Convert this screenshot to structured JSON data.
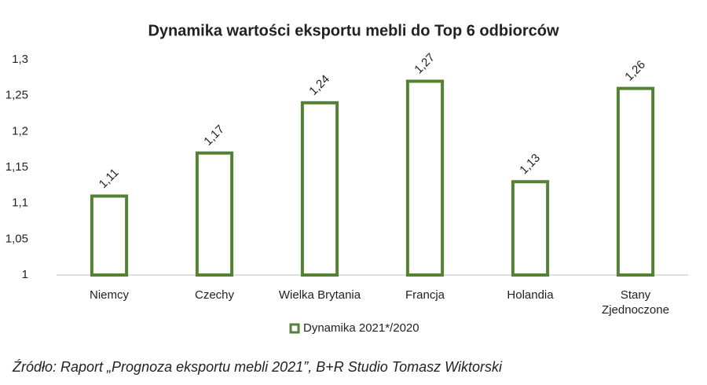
{
  "chart_data": {
    "type": "bar",
    "title": "Dynamika wartości eksportu mebli do Top 6 odbiorców",
    "categories": [
      "Niemcy",
      "Czechy",
      "Wielka Brytania",
      "Francja",
      "Holandia",
      "Stany Zjednoczone"
    ],
    "series": [
      {
        "name": "Dynamika 2021*/2020",
        "color": "#548235",
        "values": [
          1.11,
          1.17,
          1.24,
          1.27,
          1.13,
          1.26
        ],
        "value_labels": [
          "1,11",
          "1,17",
          "1,24",
          "1,27",
          "1,13",
          "1,26"
        ]
      }
    ],
    "ylim": [
      1,
      1.3
    ],
    "yticks": [
      {
        "value": 1,
        "label": "1"
      },
      {
        "value": 1.05,
        "label": "1,05"
      },
      {
        "value": 1.1,
        "label": "1,1"
      },
      {
        "value": 1.15,
        "label": "1,15"
      },
      {
        "value": 1.2,
        "label": "1,2"
      },
      {
        "value": 1.25,
        "label": "1,25"
      },
      {
        "value": 1.3,
        "label": "1,3"
      }
    ],
    "grid": false,
    "legend": "bottom",
    "source": "Źródło: Raport „Prognoza eksportu mebli 2021”, B+R Studio Tomasz Wiktorski"
  }
}
